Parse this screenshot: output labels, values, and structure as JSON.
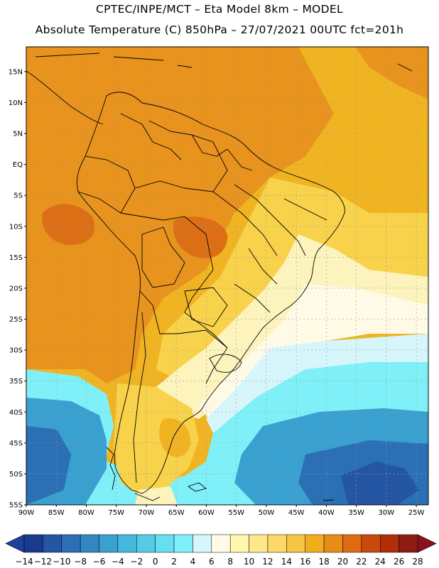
{
  "header": {
    "line1": "CPTEC/INPE/MCT –  Eta Model 8km – MODEL",
    "line2": "Absolute Temperature (C) 850hPa – 27/07/2021 00UTC fct=201h"
  },
  "map": {
    "lat_labels": [
      "15N",
      "10N",
      "5N",
      "EQ",
      "5S",
      "10S",
      "15S",
      "20S",
      "25S",
      "30S",
      "35S",
      "40S",
      "45S",
      "50S",
      "55S"
    ],
    "lon_labels": [
      "90W",
      "85W",
      "80W",
      "75W",
      "70W",
      "65W",
      "60W",
      "55W",
      "50W",
      "45W",
      "40W",
      "35W",
      "30W",
      "25W"
    ],
    "lon_range": [
      -90,
      -23
    ],
    "lat_range": [
      -55,
      19
    ]
  },
  "colorbar": {
    "ticks": [
      "-14",
      "-12",
      "-10",
      "-8",
      "-6",
      "-4",
      "-2",
      "0",
      "2",
      "4",
      "6",
      "8",
      "10",
      "12",
      "14",
      "16",
      "18",
      "20",
      "22",
      "24",
      "26",
      "28"
    ],
    "colors": [
      "#1a3a8c",
      "#2456a4",
      "#2b6fb5",
      "#3287c3",
      "#3aa0d0",
      "#45b8dc",
      "#54cce6",
      "#66dff0",
      "#7ff0f8",
      "#d6f6fb",
      "#fffbe6",
      "#fff6b0",
      "#fde98c",
      "#fbd868",
      "#f7c544",
      "#f2ad1c",
      "#e88c1a",
      "#dd6b12",
      "#c9480c",
      "#b02e0a",
      "#8c1c14"
    ],
    "under_color": "#1d3f9e",
    "over_color": "#8c0f1e"
  },
  "colors": {
    "warm_orange": "#e8931e",
    "hot": "#dc6f16",
    "amber": "#f0b422",
    "yellow": "#f8d24a",
    "pale": "#fdf3bc",
    "cream": "#fffae6",
    "cyan": "#7ff0f8",
    "light_blue": "#d6f6fb",
    "mid_blue": "#3aa0d0",
    "deep_blue": "#2456a4"
  }
}
